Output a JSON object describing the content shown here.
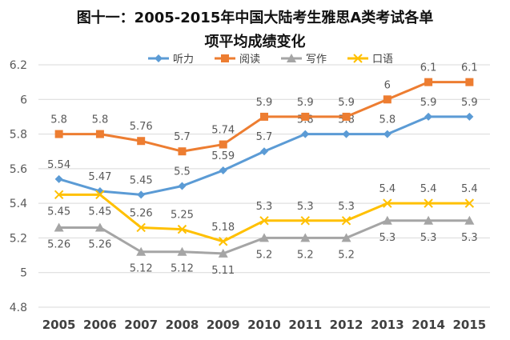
{
  "chart_data": {
    "type": "line",
    "title_lines": [
      "图十一：2005-2015年中国大陆考生雅思A类考试各单",
      "项平均成绩变化"
    ],
    "categories": [
      "2005",
      "2006",
      "2007",
      "2008",
      "2009",
      "2010",
      "2011",
      "2012",
      "2013",
      "2014",
      "2015"
    ],
    "ylim": [
      4.8,
      6.2
    ],
    "yticks": [
      "4.8",
      "5",
      "5.2",
      "5.4",
      "5.6",
      "5.8",
      "6",
      "6.2"
    ],
    "grid": true,
    "legend_position": "top",
    "series": [
      {
        "name": "听力",
        "color": "#5B9BD5",
        "marker": "diamond",
        "label_pos": "above",
        "values": [
          5.54,
          5.47,
          5.45,
          5.5,
          5.59,
          5.7,
          5.8,
          5.8,
          5.8,
          5.9,
          5.9
        ],
        "labels": [
          "5.54",
          "5.47",
          "5.45",
          "5.5",
          "5.59",
          "5.7",
          "5.8",
          "5.8",
          "5.8",
          "5.9",
          "5.9"
        ]
      },
      {
        "name": "阅读",
        "color": "#ED7D31",
        "marker": "square",
        "label_pos": "above",
        "values": [
          5.8,
          5.8,
          5.76,
          5.7,
          5.74,
          5.9,
          5.9,
          5.9,
          6.0,
          6.1,
          6.1
        ],
        "labels": [
          "5.8",
          "5.8",
          "5.76",
          "5.7",
          "5.74",
          "5.9",
          "5.9",
          "5.9",
          "6",
          "6.1",
          "6.1"
        ]
      },
      {
        "name": "写作",
        "color": "#A5A5A5",
        "marker": "triangle",
        "label_pos": "below",
        "values": [
          5.26,
          5.26,
          5.12,
          5.12,
          5.11,
          5.2,
          5.2,
          5.2,
          5.3,
          5.3,
          5.3
        ],
        "labels": [
          "5.26",
          "5.26",
          "5.12",
          "5.12",
          "5.11",
          "5.2",
          "5.2",
          "5.2",
          "5.3",
          "5.3",
          "5.3"
        ]
      },
      {
        "name": "口语",
        "color": "#FFC000",
        "marker": "x",
        "label_pos": "mixed",
        "values": [
          5.45,
          5.45,
          5.26,
          5.25,
          5.18,
          5.3,
          5.3,
          5.3,
          5.4,
          5.4,
          5.4
        ],
        "labels": [
          "5.45",
          "5.45",
          "5.26",
          "5.25",
          "5.18",
          "5.3",
          "5.3",
          "5.3",
          "5.4",
          "5.4",
          "5.4"
        ]
      }
    ]
  }
}
